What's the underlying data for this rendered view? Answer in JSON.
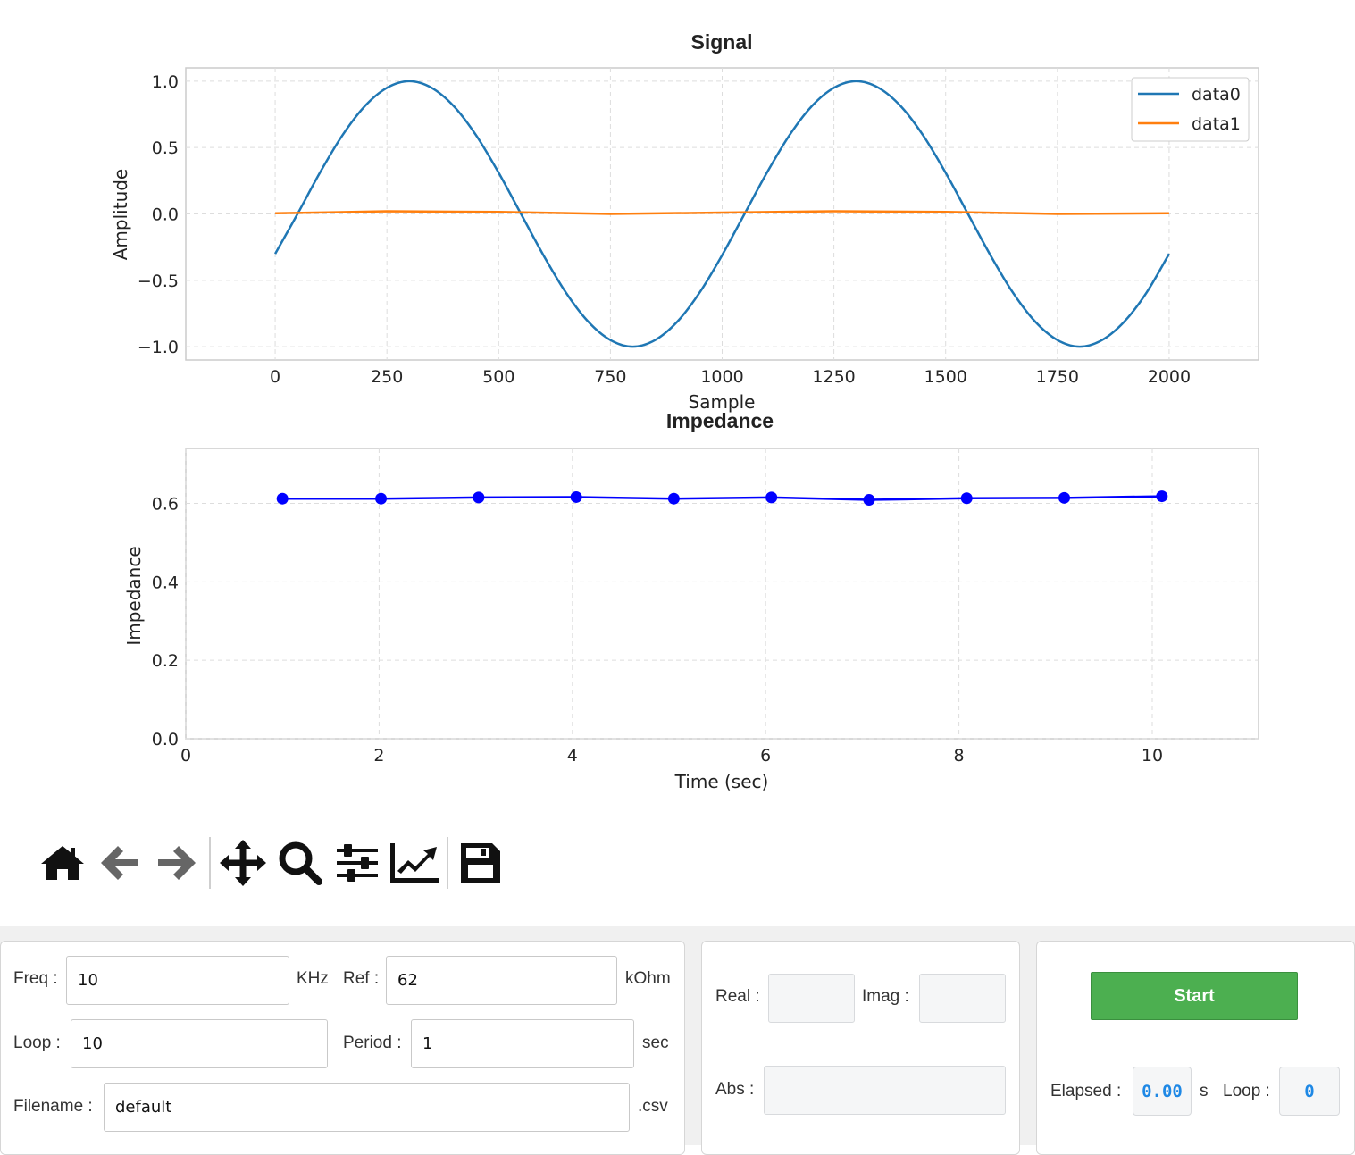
{
  "chart_data": [
    {
      "type": "line",
      "title": "Signal",
      "xlabel": "Sample",
      "ylabel": "Amplitude",
      "xlim": [
        -200,
        2200
      ],
      "ylim": [
        -1.1,
        1.1
      ],
      "x_ticks": [
        0,
        250,
        500,
        750,
        1000,
        1250,
        1500,
        1750,
        2000
      ],
      "x_tick_labels": [
        "0",
        "250",
        "500",
        "750",
        "1000",
        "1250",
        "1500",
        "1750",
        "2000"
      ],
      "y_ticks": [
        -1.0,
        -0.5,
        0.0,
        0.5,
        1.0
      ],
      "y_tick_labels": [
        "−1.0",
        "−0.5",
        "0.0",
        "0.5",
        "1.0"
      ],
      "grid": true,
      "legend_position": "top-right",
      "series": [
        {
          "name": "data0",
          "color": "#1f77b4",
          "x": [
            0,
            50,
            100,
            150,
            200,
            250,
            300,
            350,
            400,
            450,
            500,
            550,
            600,
            650,
            700,
            750,
            800,
            850,
            900,
            950,
            1000,
            1050,
            1100,
            1150,
            1200,
            1250,
            1300,
            1350,
            1400,
            1450,
            1500,
            1550,
            1600,
            1650,
            1700,
            1750,
            1800,
            1850,
            1900,
            1950,
            2000
          ],
          "y": [
            -0.3,
            0.0,
            0.31,
            0.59,
            0.81,
            0.95,
            1.0,
            0.95,
            0.81,
            0.59,
            0.31,
            0.0,
            -0.31,
            -0.59,
            -0.81,
            -0.95,
            -1.0,
            -0.95,
            -0.81,
            -0.59,
            -0.31,
            0.0,
            0.31,
            0.59,
            0.81,
            0.95,
            1.0,
            0.95,
            0.81,
            0.59,
            0.31,
            0.0,
            -0.31,
            -0.59,
            -0.81,
            -0.95,
            -1.0,
            -0.95,
            -0.81,
            -0.59,
            -0.3
          ]
        },
        {
          "name": "data1",
          "color": "#ff7f0e",
          "x": [
            0,
            250,
            500,
            750,
            1000,
            1250,
            1500,
            1750,
            2000
          ],
          "y": [
            0.005,
            0.02,
            0.015,
            0.0,
            0.01,
            0.02,
            0.015,
            0.0,
            0.005
          ]
        }
      ]
    },
    {
      "type": "line",
      "title": "Impedance",
      "xlabel": "Time (sec)",
      "ylabel": "Impedance",
      "xlim": [
        0,
        11.1
      ],
      "ylim": [
        0,
        0.74
      ],
      "x_ticks": [
        0,
        2,
        4,
        6,
        8,
        10
      ],
      "x_tick_labels": [
        "0",
        "2",
        "4",
        "6",
        "8",
        "10"
      ],
      "y_ticks": [
        0.0,
        0.2,
        0.4,
        0.6
      ],
      "y_tick_labels": [
        "0.0",
        "0.2",
        "0.4",
        "0.6"
      ],
      "grid": true,
      "series": [
        {
          "color": "#0000ff",
          "marker": "circle",
          "x": [
            1.0,
            2.02,
            3.03,
            4.04,
            5.05,
            6.06,
            7.07,
            8.08,
            9.09,
            10.1
          ],
          "y": [
            0.612,
            0.612,
            0.615,
            0.616,
            0.612,
            0.615,
            0.609,
            0.613,
            0.614,
            0.618
          ]
        }
      ]
    }
  ],
  "toolbar": {
    "items": [
      {
        "name": "home-icon",
        "interactable": true
      },
      {
        "name": "back-arrow-icon",
        "interactable": true
      },
      {
        "name": "forward-arrow-icon",
        "interactable": true
      },
      {
        "name": "pan-icon",
        "interactable": true
      },
      {
        "name": "zoom-icon",
        "interactable": true
      },
      {
        "name": "configure-subplots-icon",
        "interactable": true
      },
      {
        "name": "edit-axes-icon",
        "interactable": true
      },
      {
        "name": "save-icon",
        "interactable": true
      }
    ],
    "icon_color": "#111111",
    "disabled_color": "#666666"
  },
  "settings": {
    "freq_label": "Freq :",
    "freq_value": "10",
    "freq_unit": "KHz",
    "ref_label": "Ref :",
    "ref_value": "62",
    "ref_unit": "kOhm",
    "loop_label": "Loop :",
    "loop_value": "10",
    "period_label": "Period :",
    "period_value": "1",
    "period_unit": "sec",
    "filename_label": "Filename :",
    "filename_value": "default",
    "filename_ext": ".csv"
  },
  "results": {
    "real_label": "Real :",
    "real_value": "",
    "imag_label": "Imag :",
    "imag_value": "",
    "abs_label": "Abs :",
    "abs_value": ""
  },
  "control": {
    "start_label": "Start",
    "start_color": "#4caf50",
    "elapsed_label": "Elapsed :",
    "elapsed_value": "0.00",
    "elapsed_unit": "s",
    "loop_label": "Loop :",
    "loop_value": "0",
    "value_color": "#1e88e5"
  }
}
